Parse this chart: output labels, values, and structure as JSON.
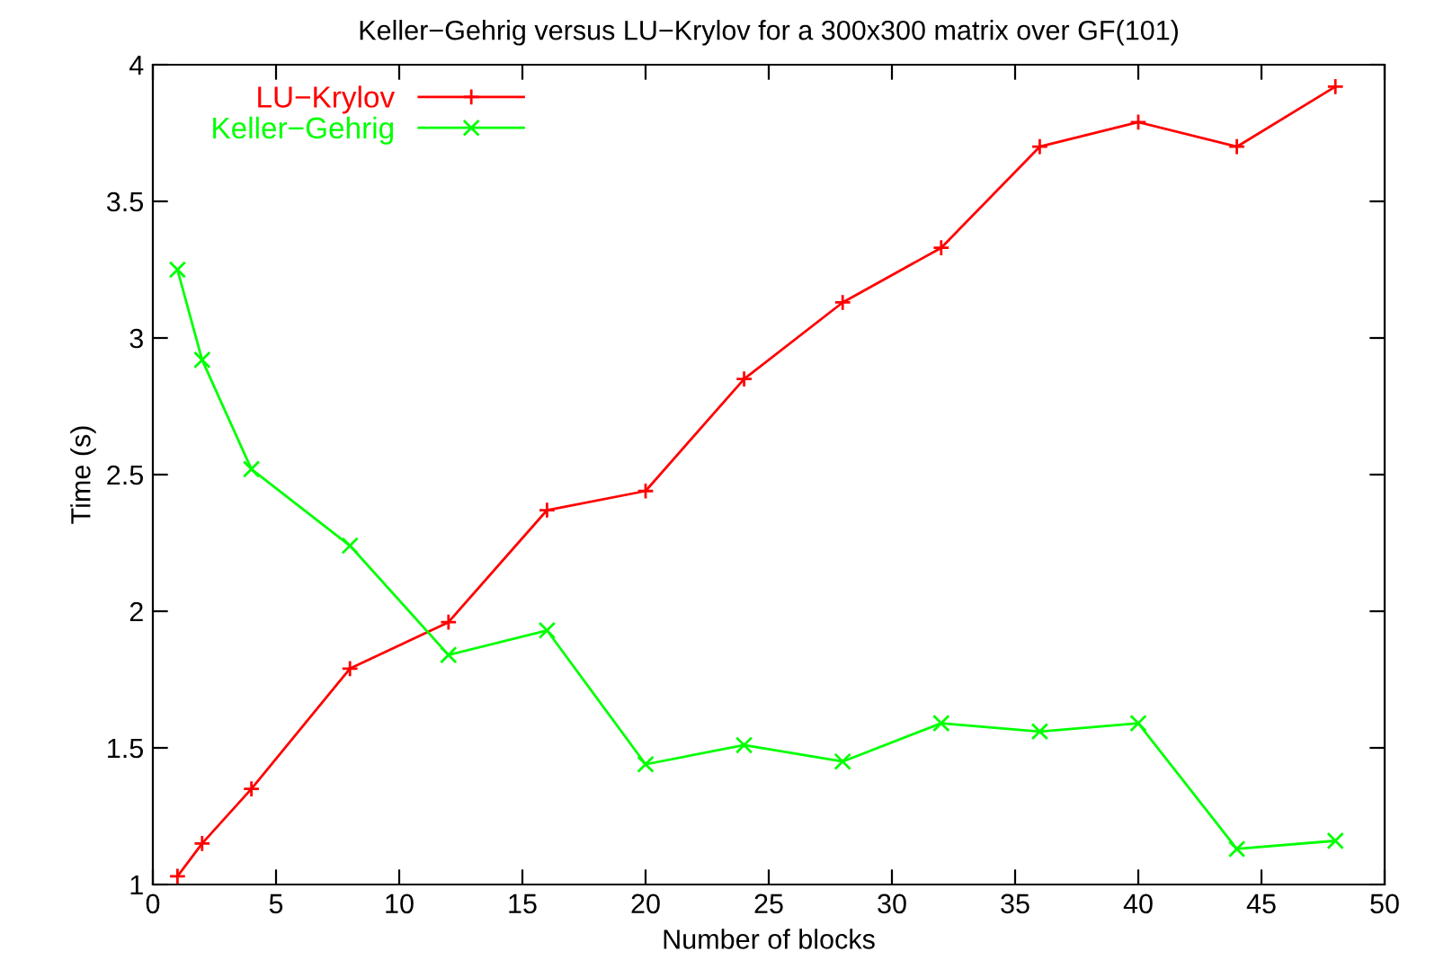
{
  "chart_data": {
    "type": "line",
    "title": "Keller−Gehrig versus LU−Krylov for a 300x300 matrix over GF(101)",
    "xlabel": "Number of blocks",
    "ylabel": "Time (s)",
    "x": [
      1,
      2,
      4,
      8,
      12,
      16,
      20,
      24,
      28,
      32,
      36,
      40,
      44,
      48
    ],
    "series": [
      {
        "name": "LU−Krylov",
        "color": "#ff0000",
        "marker": "plus",
        "values": [
          1.03,
          1.15,
          1.35,
          1.79,
          1.96,
          2.37,
          2.44,
          2.85,
          3.13,
          3.33,
          3.7,
          3.79,
          3.7,
          3.92
        ]
      },
      {
        "name": "Keller−Gehrig",
        "color": "#00ff00",
        "marker": "cross",
        "values": [
          3.25,
          2.92,
          2.52,
          2.24,
          1.84,
          1.93,
          1.44,
          1.51,
          1.45,
          1.59,
          1.56,
          1.59,
          1.13,
          1.16
        ]
      }
    ],
    "xlim": [
      0,
      50
    ],
    "xticks": [
      0,
      5,
      10,
      15,
      20,
      25,
      30,
      35,
      40,
      45,
      50
    ],
    "ylim": [
      1,
      4
    ],
    "yticks": [
      1,
      1.5,
      2,
      2.5,
      3,
      3.5,
      4
    ],
    "grid": false,
    "legend": "top left",
    "line_style": "solid"
  }
}
